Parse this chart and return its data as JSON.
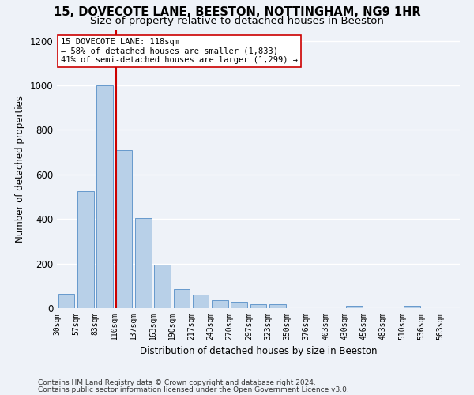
{
  "title1": "15, DOVECOTE LANE, BEESTON, NOTTINGHAM, NG9 1HR",
  "title2": "Size of property relative to detached houses in Beeston",
  "xlabel": "Distribution of detached houses by size in Beeston",
  "ylabel": "Number of detached properties",
  "footer1": "Contains HM Land Registry data © Crown copyright and database right 2024.",
  "footer2": "Contains public sector information licensed under the Open Government Licence v3.0.",
  "bar_heights": [
    65,
    525,
    1000,
    710,
    405,
    195,
    85,
    60,
    37,
    30,
    18,
    18,
    0,
    0,
    0,
    10,
    0,
    0,
    10,
    0
  ],
  "tick_labels": [
    "30sqm",
    "57sqm",
    "83sqm",
    "110sqm",
    "137sqm",
    "163sqm",
    "190sqm",
    "217sqm",
    "243sqm",
    "270sqm",
    "297sqm",
    "323sqm",
    "350sqm",
    "376sqm",
    "403sqm",
    "430sqm",
    "456sqm",
    "483sqm",
    "510sqm",
    "536sqm",
    "563sqm"
  ],
  "n_bars": 20,
  "property_bar_index": 3,
  "red_line_color": "#cc0000",
  "bar_color": "#b8d0e8",
  "bar_edge_color": "#6699cc",
  "annotation_line1": "15 DOVECOTE LANE: 118sqm",
  "annotation_line2": "← 58% of detached houses are smaller (1,833)",
  "annotation_line3": "41% of semi-detached houses are larger (1,299) →",
  "annotation_box_color": "#ffffff",
  "annotation_box_edge": "#cc0000",
  "ylim": [
    0,
    1250
  ],
  "yticks": [
    0,
    200,
    400,
    600,
    800,
    1000,
    1200
  ],
  "background_color": "#eef2f8",
  "grid_color": "#ffffff",
  "title1_fontsize": 10.5,
  "title2_fontsize": 9.5,
  "xlabel_fontsize": 8.5,
  "ylabel_fontsize": 8.5,
  "tick_fontsize": 7,
  "annotation_fontsize": 7.5,
  "footer_fontsize": 6.5
}
